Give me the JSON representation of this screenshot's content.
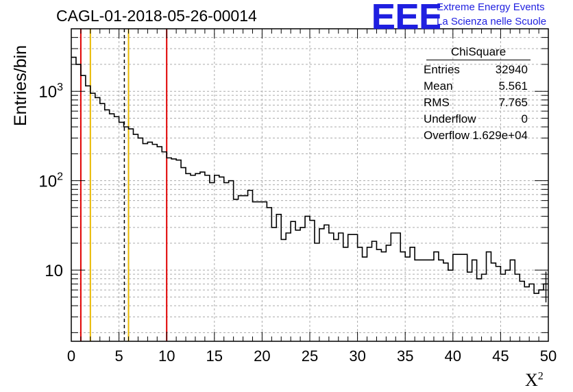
{
  "title": "CAGL-01-2018-05-26-00014",
  "logo": {
    "text": "EEE",
    "line1": "Extreme Energy Events",
    "line2": "La Scienza nelle Scuole",
    "color": "#1f1fe0"
  },
  "stats": {
    "title": "ChiSquare",
    "rows": [
      {
        "label": "Entries",
        "value": "32940"
      },
      {
        "label": "Mean",
        "value": "5.561"
      },
      {
        "label": "RMS",
        "value": "7.765"
      },
      {
        "label": "Underflow",
        "value": "0"
      },
      {
        "label": "Overflow",
        "value": "1.629e+04"
      }
    ]
  },
  "chart_data": {
    "type": "histogram",
    "xlabel": "X",
    "xlabel_sup": "2",
    "ylabel": "Entries/bin",
    "xlim": [
      0,
      50
    ],
    "ylim": [
      1.6,
      5000
    ],
    "yscale": "log",
    "grid": true,
    "bin_width": 0.5,
    "x_ticks": [
      "0",
      "5",
      "10",
      "15",
      "20",
      "25",
      "30",
      "35",
      "40",
      "45",
      "50"
    ],
    "y_ticks": [
      {
        "value": 10,
        "label": "10"
      },
      {
        "value": 100,
        "label": "10",
        "sup": "2"
      },
      {
        "value": 1000,
        "label": "10",
        "sup": "3"
      }
    ],
    "values": [
      2400,
      2000,
      1500,
      1150,
      950,
      850,
      730,
      620,
      560,
      520,
      450,
      400,
      380,
      330,
      300,
      260,
      270,
      255,
      240,
      210,
      180,
      175,
      170,
      140,
      120,
      115,
      120,
      125,
      115,
      95,
      115,
      110,
      95,
      100,
      62,
      68,
      68,
      78,
      58,
      58,
      58,
      50,
      30,
      42,
      22,
      26,
      35,
      28,
      30,
      40,
      36,
      20,
      29,
      32,
      26,
      22,
      26,
      18,
      25,
      25,
      18,
      14,
      18,
      21,
      17,
      16,
      19,
      26,
      26,
      16,
      14,
      18,
      13,
      13,
      13,
      13,
      16,
      13,
      12,
      10,
      15,
      15,
      15,
      9.5,
      13,
      8,
      9,
      16,
      12,
      11,
      9,
      10,
      13,
      9,
      7.5,
      6.5,
      7,
      5.5,
      6,
      7
    ],
    "error_bar_last": true,
    "vertical_lines": [
      {
        "x": 1,
        "color": "#e00000",
        "style": "solid"
      },
      {
        "x": 2,
        "color": "#e8b800",
        "style": "solid"
      },
      {
        "x": 5.561,
        "color": "#000000",
        "style": "dashed"
      },
      {
        "x": 6,
        "color": "#e8b800",
        "style": "solid"
      },
      {
        "x": 10,
        "color": "#e00000",
        "style": "solid"
      }
    ]
  }
}
